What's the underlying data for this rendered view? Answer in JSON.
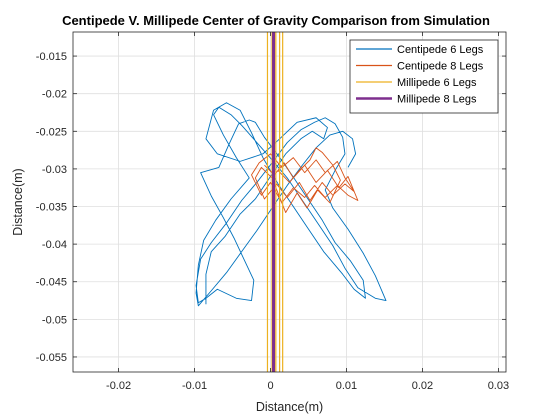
{
  "chart_data": {
    "type": "line",
    "title": "Centipede V. Millipede Center of Gravity Comparison from Simulation",
    "xlabel": "Distance(m)",
    "ylabel": "Distance(m)",
    "xlim": [
      -0.026,
      0.031
    ],
    "ylim": [
      -0.057,
      -0.0118
    ],
    "xticks": [
      -0.02,
      -0.01,
      0,
      0.01,
      0.02,
      0.03
    ],
    "xtick_labels": [
      "-0.02",
      "-0.01",
      "0",
      "0.01",
      "0.02",
      "0.03"
    ],
    "yticks": [
      -0.055,
      -0.05,
      -0.045,
      -0.04,
      -0.035,
      -0.03,
      -0.025,
      -0.02,
      -0.015
    ],
    "ytick_labels": [
      "-0.055",
      "-0.05",
      "-0.045",
      "-0.04",
      "-0.035",
      "-0.03",
      "-0.025",
      "-0.02",
      "-0.015"
    ],
    "grid": true,
    "legend_position": "top-right",
    "series": [
      {
        "name": "Centipede 6 Legs",
        "color": "#0072BD",
        "points": [
          [
            -0.0085,
            -0.048
          ],
          [
            -0.0085,
            -0.044
          ],
          [
            -0.0078,
            -0.041
          ],
          [
            -0.006,
            -0.039
          ],
          [
            -0.004,
            -0.036
          ],
          [
            -0.002,
            -0.034
          ],
          [
            0.0,
            -0.031
          ],
          [
            0.002,
            -0.028
          ],
          [
            0.004,
            -0.026
          ],
          [
            0.0055,
            -0.025
          ],
          [
            0.007,
            -0.026
          ],
          [
            0.0075,
            -0.0245
          ],
          [
            0.006,
            -0.0232
          ],
          [
            0.0035,
            -0.0238
          ],
          [
            0.001,
            -0.0262
          ],
          [
            -0.001,
            -0.028
          ],
          [
            -0.004,
            -0.029
          ],
          [
            -0.007,
            -0.028
          ],
          [
            -0.0085,
            -0.026
          ],
          [
            -0.0075,
            -0.0222
          ],
          [
            -0.0058,
            -0.0212
          ],
          [
            -0.004,
            -0.0222
          ],
          [
            -0.0025,
            -0.0252
          ],
          [
            -0.001,
            -0.0285
          ],
          [
            0.001,
            -0.032
          ],
          [
            0.003,
            -0.035
          ],
          [
            0.005,
            -0.038
          ],
          [
            0.007,
            -0.041
          ],
          [
            0.0095,
            -0.044
          ],
          [
            0.011,
            -0.046
          ],
          [
            0.0125,
            -0.0472
          ],
          [
            0.0122,
            -0.0448
          ],
          [
            0.0105,
            -0.0422
          ],
          [
            0.0085,
            -0.0398
          ],
          [
            0.0068,
            -0.0368
          ],
          [
            0.0048,
            -0.0338
          ],
          [
            0.0028,
            -0.0308
          ],
          [
            0.001,
            -0.0282
          ],
          [
            -0.0008,
            -0.0258
          ],
          [
            -0.002,
            -0.0238
          ],
          [
            -0.0028,
            -0.0235
          ],
          [
            -0.0042,
            -0.024
          ],
          [
            -0.0055,
            -0.0268
          ],
          [
            -0.0068,
            -0.0298
          ],
          [
            -0.0092,
            -0.0305
          ],
          [
            -0.0078,
            -0.0336
          ],
          [
            -0.0062,
            -0.0365
          ],
          [
            -0.0048,
            -0.0392
          ],
          [
            -0.0035,
            -0.042
          ],
          [
            -0.0022,
            -0.0448
          ],
          [
            -0.0025,
            -0.0475
          ],
          [
            -0.0045,
            -0.0472
          ],
          [
            -0.007,
            -0.046
          ],
          [
            -0.0085,
            -0.0472
          ],
          [
            -0.0095,
            -0.0478
          ],
          [
            -0.0098,
            -0.0455
          ],
          [
            -0.0092,
            -0.042
          ],
          [
            -0.0078,
            -0.0398
          ],
          [
            -0.0058,
            -0.0372
          ],
          [
            -0.0038,
            -0.0342
          ],
          [
            -0.0018,
            -0.0318
          ],
          [
            0.0002,
            -0.0292
          ],
          [
            0.0022,
            -0.0265
          ],
          [
            0.004,
            -0.0248
          ],
          [
            0.0058,
            -0.0238
          ],
          [
            0.0072,
            -0.0232
          ],
          [
            0.0085,
            -0.024
          ],
          [
            0.0095,
            -0.0258
          ],
          [
            0.0098,
            -0.028
          ],
          [
            0.0085,
            -0.0302
          ],
          [
            0.0072,
            -0.0328
          ],
          [
            0.0082,
            -0.0352
          ],
          [
            0.0102,
            -0.038
          ],
          [
            0.0122,
            -0.0412
          ],
          [
            0.0138,
            -0.0442
          ],
          [
            0.0152,
            -0.0475
          ],
          [
            0.0138,
            -0.0472
          ],
          [
            0.0115,
            -0.0458
          ],
          [
            0.0098,
            -0.0432
          ],
          [
            0.0082,
            -0.0402
          ],
          [
            0.0062,
            -0.0372
          ],
          [
            0.0042,
            -0.0342
          ],
          [
            0.0022,
            -0.0312
          ],
          [
            0.0002,
            -0.0288
          ],
          [
            -0.0018,
            -0.0265
          ],
          [
            -0.0038,
            -0.0242
          ],
          [
            -0.0052,
            -0.0228
          ],
          [
            -0.0068,
            -0.0218
          ],
          [
            -0.0075,
            -0.0228
          ],
          [
            -0.0062,
            -0.0255
          ],
          [
            -0.0045,
            -0.0285
          ],
          [
            -0.0028,
            -0.0312
          ],
          [
            -0.0052,
            -0.034
          ],
          [
            -0.0072,
            -0.0368
          ],
          [
            -0.0088,
            -0.0395
          ],
          [
            -0.0095,
            -0.0428
          ],
          [
            -0.0098,
            -0.0465
          ],
          [
            -0.0095,
            -0.0482
          ],
          [
            -0.0078,
            -0.0462
          ],
          [
            -0.0058,
            -0.0438
          ],
          [
            -0.0038,
            -0.041
          ],
          [
            -0.0018,
            -0.0382
          ],
          [
            0.0002,
            -0.0352
          ],
          [
            0.0022,
            -0.0322
          ],
          [
            0.0042,
            -0.0295
          ],
          [
            0.006,
            -0.0272
          ],
          [
            0.0078,
            -0.0255
          ],
          [
            0.0095,
            -0.025
          ],
          [
            0.0108,
            -0.026
          ],
          [
            0.0112,
            -0.028
          ],
          [
            0.0102,
            -0.0298
          ]
        ]
      },
      {
        "name": "Centipede 8 Legs",
        "color": "#D95319",
        "points": [
          [
            -0.0008,
            -0.0295
          ],
          [
            0.0005,
            -0.0308
          ],
          [
            0.0018,
            -0.0292
          ],
          [
            0.003,
            -0.0312
          ],
          [
            0.0045,
            -0.0295
          ],
          [
            0.006,
            -0.0318
          ],
          [
            0.0075,
            -0.0302
          ],
          [
            0.009,
            -0.0325
          ],
          [
            0.0102,
            -0.031
          ],
          [
            0.0115,
            -0.0342
          ],
          [
            0.0102,
            -0.0335
          ],
          [
            0.0088,
            -0.0322
          ],
          [
            0.0072,
            -0.0338
          ],
          [
            0.0058,
            -0.0322
          ],
          [
            0.0045,
            -0.0338
          ],
          [
            0.003,
            -0.0325
          ],
          [
            0.0015,
            -0.0345
          ],
          [
            0.0,
            -0.0318
          ],
          [
            -0.0012,
            -0.0335
          ],
          [
            -0.0025,
            -0.0308
          ],
          [
            -0.0015,
            -0.0292
          ],
          [
            0.0,
            -0.028
          ],
          [
            0.0015,
            -0.0298
          ],
          [
            0.003,
            -0.0285
          ],
          [
            0.0045,
            -0.0305
          ],
          [
            0.006,
            -0.0288
          ],
          [
            0.0072,
            -0.0305
          ],
          [
            0.0088,
            -0.029
          ],
          [
            0.0098,
            -0.0312
          ],
          [
            0.011,
            -0.033
          ],
          [
            0.0098,
            -0.032
          ],
          [
            0.0082,
            -0.0335
          ],
          [
            0.0068,
            -0.0318
          ],
          [
            0.0052,
            -0.0342
          ],
          [
            0.0038,
            -0.0318
          ],
          [
            0.0022,
            -0.0338
          ],
          [
            0.0008,
            -0.032
          ],
          [
            -0.0008,
            -0.034
          ],
          [
            -0.002,
            -0.0312
          ],
          [
            -0.0012,
            -0.0298
          ],
          [
            0.0002,
            -0.0312
          ],
          [
            0.002,
            -0.0358
          ],
          [
            0.0035,
            -0.0332
          ],
          [
            0.0048,
            -0.0352
          ],
          [
            0.0062,
            -0.0328
          ],
          [
            0.0078,
            -0.0345
          ],
          [
            0.0092,
            -0.0315
          ],
          [
            0.0082,
            -0.0295
          ],
          [
            0.0068,
            -0.0278
          ],
          [
            0.006,
            -0.0272
          ],
          [
            0.0052,
            -0.0288
          ],
          [
            0.0038,
            -0.0302
          ],
          [
            0.0025,
            -0.0318
          ],
          [
            0.001,
            -0.0302
          ]
        ]
      },
      {
        "name": "Millipede 6 Legs",
        "color": "#EDB120",
        "width": 1.2,
        "polylines": [
          [
            [
              -0.0004,
              -0.0118
            ],
            [
              -0.0004,
              -0.057
            ]
          ],
          [
            [
              0.0002,
              -0.0118
            ],
            [
              0.0002,
              -0.057
            ]
          ],
          [
            [
              0.0007,
              -0.0118
            ],
            [
              0.0007,
              -0.057
            ]
          ],
          [
            [
              0.0012,
              -0.0118
            ],
            [
              0.0012,
              -0.057
            ]
          ],
          [
            [
              0.0016,
              -0.0118
            ],
            [
              0.0016,
              -0.057
            ]
          ]
        ]
      },
      {
        "name": "Millipede 8 Legs",
        "color": "#7E2F8E",
        "width": 3,
        "polylines": [
          [
            [
              0.0004,
              -0.0118
            ],
            [
              0.0004,
              -0.057
            ]
          ]
        ]
      }
    ]
  }
}
